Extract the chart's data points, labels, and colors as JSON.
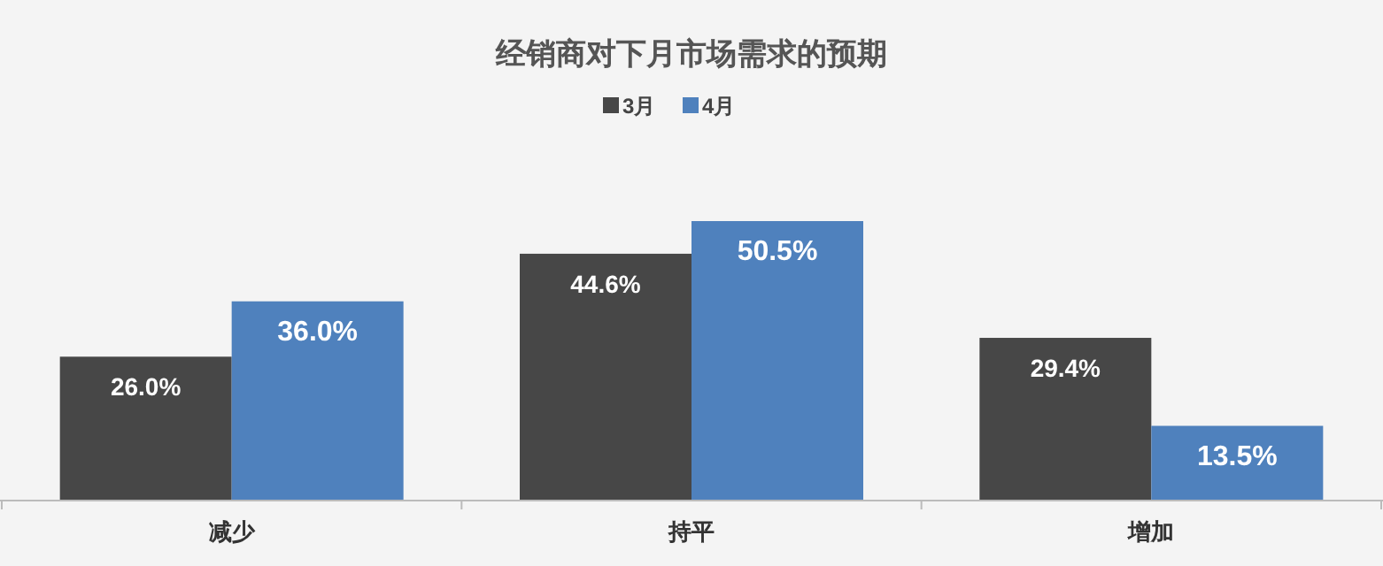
{
  "chart_data": {
    "type": "bar",
    "title": "经销商对下月市场需求的预期",
    "categories": [
      "减少",
      "持平",
      "增加"
    ],
    "series": [
      {
        "name": "3月",
        "color": "#474747",
        "values": [
          26.0,
          44.6,
          29.4
        ],
        "value_labels": [
          "26.0%",
          "44.6%",
          "29.4%"
        ]
      },
      {
        "name": "4月",
        "color": "#4f81bd",
        "values": [
          36.0,
          50.5,
          13.5
        ],
        "value_labels": [
          "36.0%",
          "50.5%",
          "13.5%"
        ]
      }
    ],
    "legend": "top",
    "grid": false
  }
}
